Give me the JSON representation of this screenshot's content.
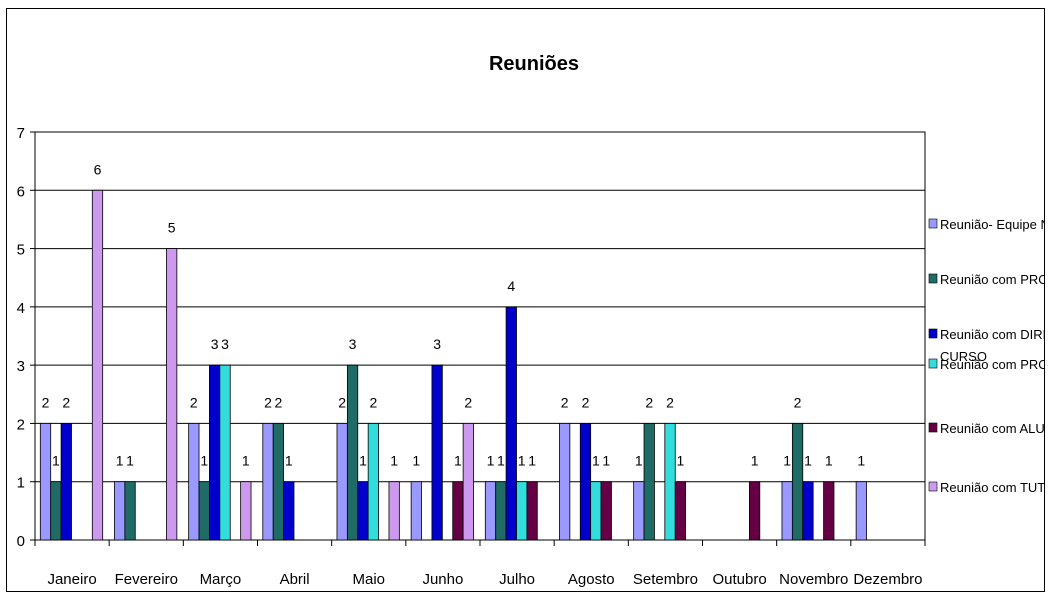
{
  "chart_data": {
    "type": "bar",
    "title": "Reuniões",
    "xlabel": "",
    "ylabel": "",
    "ylim": [
      0,
      7
    ],
    "yticks": [
      0,
      1,
      2,
      3,
      4,
      5,
      6,
      7
    ],
    "grid": true,
    "legend_position": "right",
    "categories": [
      "Janeiro",
      "Fevereiro",
      "Março",
      "Abril",
      "Maio",
      "Junho",
      "Julho",
      "Agosto",
      "Setembro",
      "Outubro",
      "Novembro",
      "Dezembro"
    ],
    "series": [
      {
        "name": "Reunião- Equipe NAP",
        "color": "#9999ff",
        "values": [
          2,
          1,
          2,
          2,
          2,
          1,
          1,
          2,
          1,
          0,
          1,
          1
        ]
      },
      {
        "name": "Reunião com PROGRAD",
        "color": "#1f6b66",
        "values": [
          1,
          1,
          1,
          2,
          3,
          0,
          1,
          0,
          2,
          0,
          2,
          0
        ]
      },
      {
        "name": "Reunião com DIREÇÃO DE CURSO",
        "color": "#0000cc",
        "values": [
          2,
          0,
          3,
          1,
          1,
          3,
          4,
          2,
          0,
          0,
          1,
          0
        ]
      },
      {
        "name": "Reunião com PROFESSORE",
        "color": "#33dddd",
        "values": [
          0,
          0,
          3,
          0,
          2,
          0,
          1,
          1,
          2,
          0,
          0,
          0
        ]
      },
      {
        "name": "Reunião com ALUNOS",
        "color": "#660044",
        "values": [
          0,
          0,
          0,
          0,
          0,
          1,
          1,
          1,
          1,
          1,
          1,
          0
        ]
      },
      {
        "name": "Reunião com TUTORES",
        "color": "#cc99ee",
        "values": [
          6,
          5,
          1,
          0,
          1,
          2,
          0,
          0,
          0,
          0,
          0,
          0
        ]
      }
    ]
  }
}
